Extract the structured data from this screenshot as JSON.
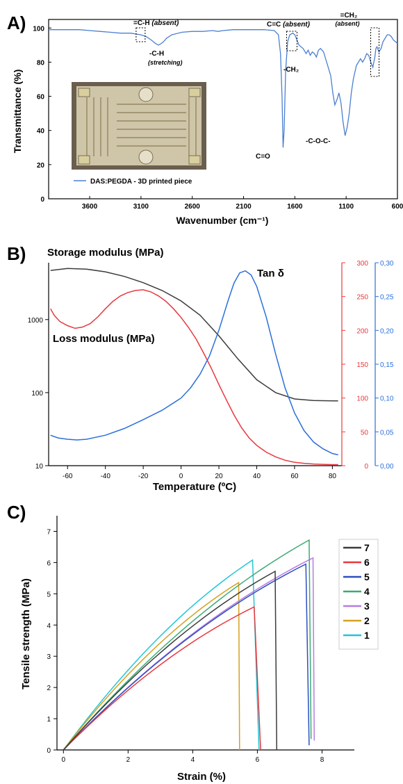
{
  "panels": {
    "a": {
      "label": "A)"
    },
    "b": {
      "label": "B)"
    },
    "c": {
      "label": "C)"
    }
  },
  "colors": {
    "ftir": "#4a7fd0",
    "storage": "#3b3b3b",
    "loss": "#e8383d",
    "tan": "#2a6fdb",
    "s7": "#3b3b3b",
    "s6": "#e8383d",
    "s5": "#2d4fbf",
    "s4": "#3caa74",
    "s3": "#b77be0",
    "s2": "#d4a11e",
    "s1": "#22c5d6"
  },
  "chart_data": [
    {
      "id": "a",
      "type": "line",
      "xlabel": "Wavenumber (cm⁻¹)",
      "ylabel": "Transmittance (%)",
      "xlim": [
        4000,
        600
      ],
      "ylim": [
        0,
        105
      ],
      "x_ticks": [
        "3600",
        "3100",
        "2600",
        "2100",
        "1600",
        "1100",
        "600"
      ],
      "y_ticks": [
        "0",
        "20",
        "40",
        "60",
        "80",
        "100"
      ],
      "legend": "DAS:PEGDA - 3D printed piece",
      "annotations": {
        "ch_absent_main": "=C-H",
        "ch_absent_sub": "(absent)",
        "ch_stretch_main": "-C-H",
        "ch_stretch_sub": "(stretching)",
        "cc_absent_main": "C=C",
        "cc_absent_sub": "(absent)",
        "ch2_absent_main": "=CH₂",
        "ch2_absent_sub": "(absent)",
        "ch2": "-CH₂",
        "co": "C=O",
        "coc": "-C-O-C-"
      },
      "series": [
        {
          "x": [
            4000,
            3900,
            3800,
            3700,
            3600,
            3500,
            3400,
            3300,
            3200,
            3100,
            3050,
            3000,
            2960,
            2930,
            2900,
            2880,
            2850,
            2800,
            2700,
            2600,
            2500,
            2400,
            2350,
            2300,
            2200,
            2100,
            2000,
            1900,
            1800,
            1760,
            1740,
            1725,
            1715,
            1705,
            1690,
            1670,
            1650,
            1620,
            1600,
            1560,
            1520,
            1490,
            1470,
            1450,
            1430,
            1410,
            1390,
            1370,
            1350,
            1320,
            1300,
            1280,
            1250,
            1230,
            1210,
            1190,
            1170,
            1150,
            1130,
            1110,
            1090,
            1070,
            1050,
            1030,
            1000,
            980,
            960,
            940,
            920,
            900,
            880,
            860,
            840,
            820,
            810,
            800,
            780,
            760,
            740,
            720,
            700,
            680,
            660,
            640,
            620,
            600
          ],
          "y": [
            99,
            99,
            99,
            99,
            98.5,
            98,
            97.5,
            97,
            97,
            96,
            95,
            93,
            91,
            90,
            91,
            92,
            94,
            96,
            97.5,
            98,
            98,
            98.5,
            98,
            98.5,
            99,
            99,
            99,
            99,
            98.5,
            96,
            85,
            60,
            30,
            40,
            75,
            92,
            96,
            97,
            96,
            90,
            88,
            85,
            87,
            84,
            86,
            85,
            83,
            87,
            88,
            86,
            82,
            78,
            72,
            62,
            55,
            58,
            62,
            56,
            45,
            37,
            42,
            50,
            62,
            70,
            78,
            80,
            82,
            80,
            82,
            85,
            84,
            80,
            77,
            83,
            88,
            89,
            86,
            88,
            92,
            94,
            96,
            96,
            95,
            93,
            92,
            91
          ]
        }
      ]
    },
    {
      "id": "b",
      "type": "line",
      "xlabel": "Temperature (ºC)",
      "xlim": [
        -70,
        85
      ],
      "x_ticks": [
        "-60",
        "-40",
        "-20",
        "0",
        "20",
        "40",
        "60",
        "80"
      ],
      "y_left": {
        "scale": "log",
        "ylim": [
          10,
          6000
        ],
        "ticks": [
          "10",
          "100",
          "1000"
        ]
      },
      "y_right1": {
        "ylim": [
          0,
          300
        ],
        "ticks": [
          "0",
          "50",
          "100",
          "150",
          "200",
          "250",
          "300"
        ]
      },
      "y_right2": {
        "ylim": [
          0,
          0.3
        ],
        "ticks": [
          "0,00",
          "0,05",
          "0,10",
          "0,15",
          "0,20",
          "0,25",
          "0,30"
        ]
      },
      "labels": {
        "storage": "Storage modulus (MPa)",
        "loss": "Loss modulus (MPa)",
        "tan": "Tan δ"
      },
      "series": [
        {
          "id": "storage",
          "axis": "left",
          "x": [
            -69,
            -60,
            -50,
            -40,
            -30,
            -20,
            -10,
            0,
            10,
            20,
            30,
            40,
            50,
            60,
            70,
            80,
            83
          ],
          "y": [
            4700,
            5000,
            4900,
            4500,
            3900,
            3200,
            2500,
            1800,
            1150,
            600,
            290,
            150,
            100,
            82,
            78,
            77,
            77
          ]
        },
        {
          "id": "loss",
          "axis": "right1",
          "x": [
            -69,
            -67,
            -64,
            -60,
            -56,
            -52,
            -48,
            -44,
            -40,
            -36,
            -32,
            -28,
            -24,
            -20,
            -16,
            -12,
            -8,
            -4,
            0,
            4,
            8,
            12,
            16,
            20,
            24,
            28,
            32,
            36,
            40,
            45,
            50,
            55,
            60,
            65,
            70,
            75,
            80,
            83
          ],
          "y": [
            232,
            222,
            213,
            207,
            203,
            205,
            210,
            220,
            232,
            243,
            251,
            256,
            259,
            260,
            257,
            251,
            243,
            232,
            219,
            204,
            187,
            166,
            144,
            120,
            97,
            75,
            56,
            41,
            30,
            20,
            13,
            8,
            5,
            3.5,
            2.5,
            2,
            1.5,
            1.5
          ]
        },
        {
          "id": "tan",
          "axis": "right2",
          "x": [
            -69,
            -65,
            -60,
            -55,
            -50,
            -40,
            -30,
            -20,
            -10,
            0,
            5,
            10,
            15,
            20,
            25,
            28,
            31,
            34,
            37,
            40,
            45,
            50,
            55,
            60,
            65,
            70,
            75,
            80,
            83
          ],
          "y": [
            0.045,
            0.041,
            0.039,
            0.038,
            0.039,
            0.045,
            0.055,
            0.068,
            0.082,
            0.1,
            0.115,
            0.135,
            0.162,
            0.2,
            0.245,
            0.27,
            0.285,
            0.288,
            0.282,
            0.265,
            0.22,
            0.165,
            0.115,
            0.078,
            0.052,
            0.035,
            0.025,
            0.018,
            0.016
          ]
        }
      ]
    },
    {
      "id": "c",
      "type": "line",
      "xlabel": "Strain (%)",
      "ylabel": "Tensile strength (MPa)",
      "xlim": [
        -0.2,
        9
      ],
      "ylim": [
        0,
        7.5
      ],
      "x_ticks": [
        "0",
        "2",
        "4",
        "6",
        "8"
      ],
      "y_ticks": [
        "0",
        "1",
        "2",
        "3",
        "4",
        "5",
        "6",
        "7"
      ],
      "legend": [
        "7",
        "6",
        "5",
        "4",
        "3",
        "2",
        "1"
      ],
      "series": [
        {
          "name": "7",
          "peak_strain": 6.55,
          "peak": 5.72,
          "break_strain": 6.6,
          "break": 0.0
        },
        {
          "name": "6",
          "peak_strain": 5.9,
          "peak": 4.58,
          "break_strain": 6.1,
          "break": 0.0
        },
        {
          "name": "5",
          "peak_strain": 7.5,
          "peak": 5.95,
          "break_strain": 7.6,
          "break": 0.15
        },
        {
          "name": "4",
          "peak_strain": 7.6,
          "peak": 6.72,
          "break_strain": 7.66,
          "break": 0.35
        },
        {
          "name": "3",
          "peak_strain": 7.72,
          "peak": 6.15,
          "break_strain": 7.76,
          "break": 0.3
        },
        {
          "name": "2",
          "peak_strain": 5.42,
          "peak": 5.36,
          "break_strain": 5.45,
          "break": 0.0
        },
        {
          "name": "1",
          "peak_strain": 5.85,
          "peak": 6.08,
          "break_strain": 6.05,
          "break": 0.0
        }
      ]
    }
  ]
}
